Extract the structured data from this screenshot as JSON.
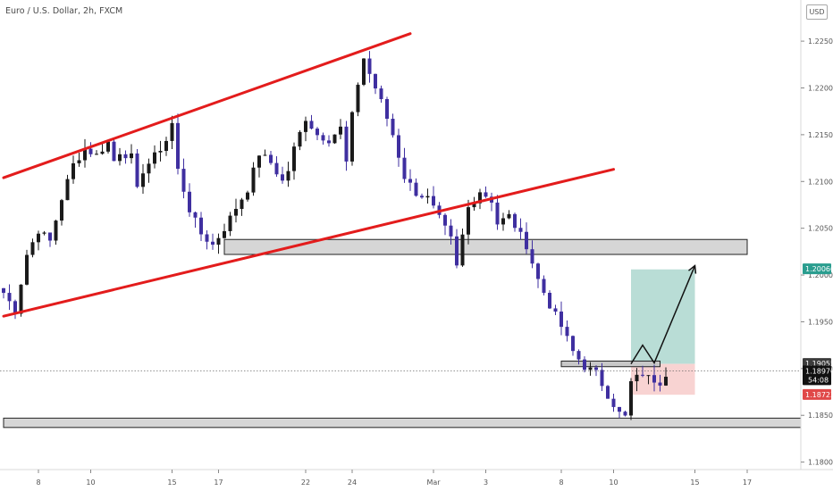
{
  "chart_data": {
    "type": "candlestick",
    "title": "Euro / U.S. Dollar, 2h, FXCM",
    "currency": "USD",
    "y_ticks": [
      "1.22500",
      "1.22000",
      "1.21500",
      "1.21000",
      "1.20500",
      "1.20000",
      "1.19500",
      "1.19000",
      "1.18500",
      "1.18000"
    ],
    "x_ticks": [
      "8",
      "10",
      "15",
      "17",
      "22",
      "24",
      "Mar",
      "3",
      "8",
      "10",
      "15",
      "17"
    ],
    "ylim": [
      1.1792,
      1.2294
    ],
    "candle_color_up": "#1a1a1a",
    "candle_color_down": "#3f2fa0",
    "price_path": [
      [
        0,
        1.1981
      ],
      [
        2,
        1.1962
      ],
      [
        4,
        1.2022
      ],
      [
        6,
        1.2048
      ],
      [
        8,
        1.2036
      ],
      [
        10,
        1.2082
      ],
      [
        12,
        1.2118
      ],
      [
        14,
        1.2135
      ],
      [
        16,
        1.2128
      ],
      [
        18,
        1.2142
      ],
      [
        19,
        1.2122
      ],
      [
        20,
        1.2132
      ],
      [
        22,
        1.2126
      ],
      [
        23,
        1.209
      ],
      [
        24,
        1.2112
      ],
      [
        26,
        1.2127
      ],
      [
        28,
        1.2144
      ],
      [
        29,
        1.2162
      ],
      [
        30,
        1.2112
      ],
      [
        32,
        1.207
      ],
      [
        34,
        1.2044
      ],
      [
        36,
        1.2032
      ],
      [
        38,
        1.205
      ],
      [
        40,
        1.2072
      ],
      [
        42,
        1.2092
      ],
      [
        44,
        1.213
      ],
      [
        46,
        1.212
      ],
      [
        48,
        1.21
      ],
      [
        49,
        1.2112
      ],
      [
        50,
        1.2135
      ],
      [
        52,
        1.2168
      ],
      [
        54,
        1.215
      ],
      [
        56,
        1.2145
      ],
      [
        58,
        1.2157
      ],
      [
        59,
        1.212
      ],
      [
        60,
        1.217
      ],
      [
        61,
        1.2205
      ],
      [
        62,
        1.2232
      ],
      [
        63,
        1.2215
      ],
      [
        65,
        1.2185
      ],
      [
        67,
        1.215
      ],
      [
        69,
        1.2105
      ],
      [
        71,
        1.2088
      ],
      [
        73,
        1.2082
      ],
      [
        75,
        1.206
      ],
      [
        77,
        1.2038
      ],
      [
        78,
        1.2008
      ],
      [
        79,
        1.2042
      ],
      [
        80,
        1.2072
      ],
      [
        82,
        1.209
      ],
      [
        84,
        1.208
      ],
      [
        85,
        1.2055
      ],
      [
        87,
        1.2063
      ],
      [
        89,
        1.2042
      ],
      [
        90,
        1.2032
      ],
      [
        92,
        1.1995
      ],
      [
        94,
        1.1968
      ],
      [
        96,
        1.1945
      ],
      [
        98,
        1.1918
      ],
      [
        100,
        1.1902
      ],
      [
        102,
        1.1895
      ],
      [
        104,
        1.1872
      ],
      [
        106,
        1.1852
      ],
      [
        107,
        1.1848
      ],
      [
        108,
        1.1885
      ],
      [
        110,
        1.1895
      ],
      [
        111,
        1.189
      ],
      [
        113,
        1.1886
      ],
      [
        114,
        1.1895
      ]
    ],
    "annotations": {
      "upper_channel": {
        "color": "#e31c1c",
        "from": [
          0,
          1.2104
        ],
        "to": [
          70,
          1.2258
        ]
      },
      "lower_channel": {
        "color": "#e31c1c",
        "from": [
          0,
          1.1956
        ],
        "to": [
          105,
          1.2113
        ]
      },
      "support_zone_upper": {
        "x_from": 38,
        "x_to": 128,
        "y_from": 1.2022,
        "y_to": 1.2038
      },
      "support_zone_lower": {
        "x_from": 0,
        "x_to": 141,
        "y_from": 1.1837,
        "y_to": 1.1847
      },
      "entry_zone": {
        "x_from": 96,
        "x_to": 113,
        "y_from": 1.1902,
        "y_to": 1.1908
      },
      "take_profit_area": {
        "color": "#b9ddd6",
        "x_from": 108,
        "x_to": 119,
        "y_from": 1.1905,
        "y_to": 1.2006
      },
      "stop_loss_area": {
        "color": "#f8d3d2",
        "x_from": 108,
        "x_to": 119,
        "y_from": 1.1872,
        "y_to": 1.1905
      },
      "projected_path": [
        [
          108,
          1.1905
        ],
        [
          110,
          1.1925
        ],
        [
          112,
          1.1906
        ],
        [
          119,
          1.201
        ]
      ]
    },
    "price_labels": [
      {
        "text": "1.20066",
        "value": 1.20066,
        "bg": "#2a9d8f"
      },
      {
        "text": "1.19055",
        "value": 1.19055,
        "bg": "#3c3c3c"
      },
      {
        "text": "1.18976",
        "value": 1.18976,
        "bg": "#111111",
        "sub": "54:08"
      },
      {
        "text": "1.18723",
        "value": 1.18723,
        "bg": "#e04848"
      }
    ],
    "current_price_line": 1.18976,
    "grid": false,
    "legend": "none"
  }
}
